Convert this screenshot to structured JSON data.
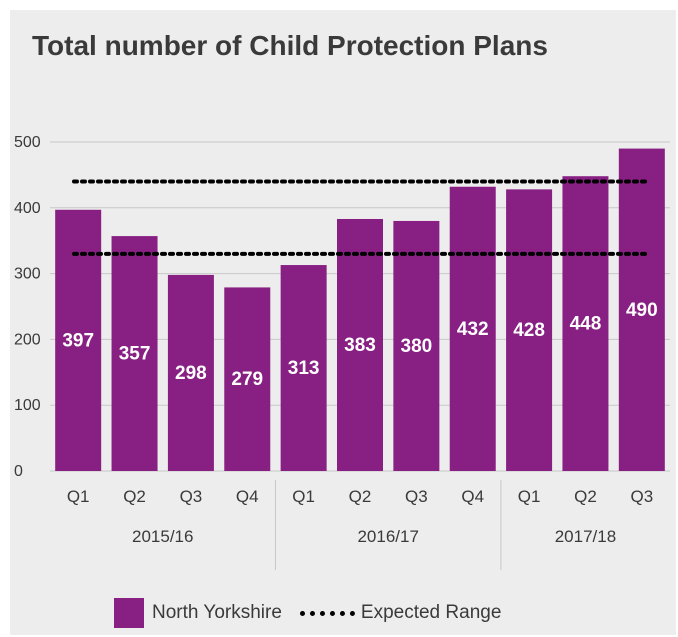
{
  "chart_data": {
    "type": "bar",
    "title": "Total number of Child Protection Plans",
    "xlabel": "",
    "ylabel": "",
    "ylim": [
      0,
      500
    ],
    "yticks": [
      0,
      100,
      200,
      300,
      400,
      500
    ],
    "grid": true,
    "categories": [
      "Q1",
      "Q2",
      "Q3",
      "Q4",
      "Q1",
      "Q2",
      "Q3",
      "Q4",
      "Q1",
      "Q2",
      "Q3"
    ],
    "groups": [
      {
        "label": "2015/16",
        "count": 4
      },
      {
        "label": "2016/17",
        "count": 4
      },
      {
        "label": "2017/18",
        "count": 3
      }
    ],
    "series": [
      {
        "name": "North Yorkshire",
        "values": [
          397,
          357,
          298,
          279,
          313,
          383,
          380,
          432,
          428,
          448,
          490
        ],
        "color": "#881f82"
      }
    ],
    "expected_range": {
      "name": "Expected Range",
      "low": 330,
      "high": 440,
      "color": "#000000"
    },
    "legend_position": "bottom"
  }
}
